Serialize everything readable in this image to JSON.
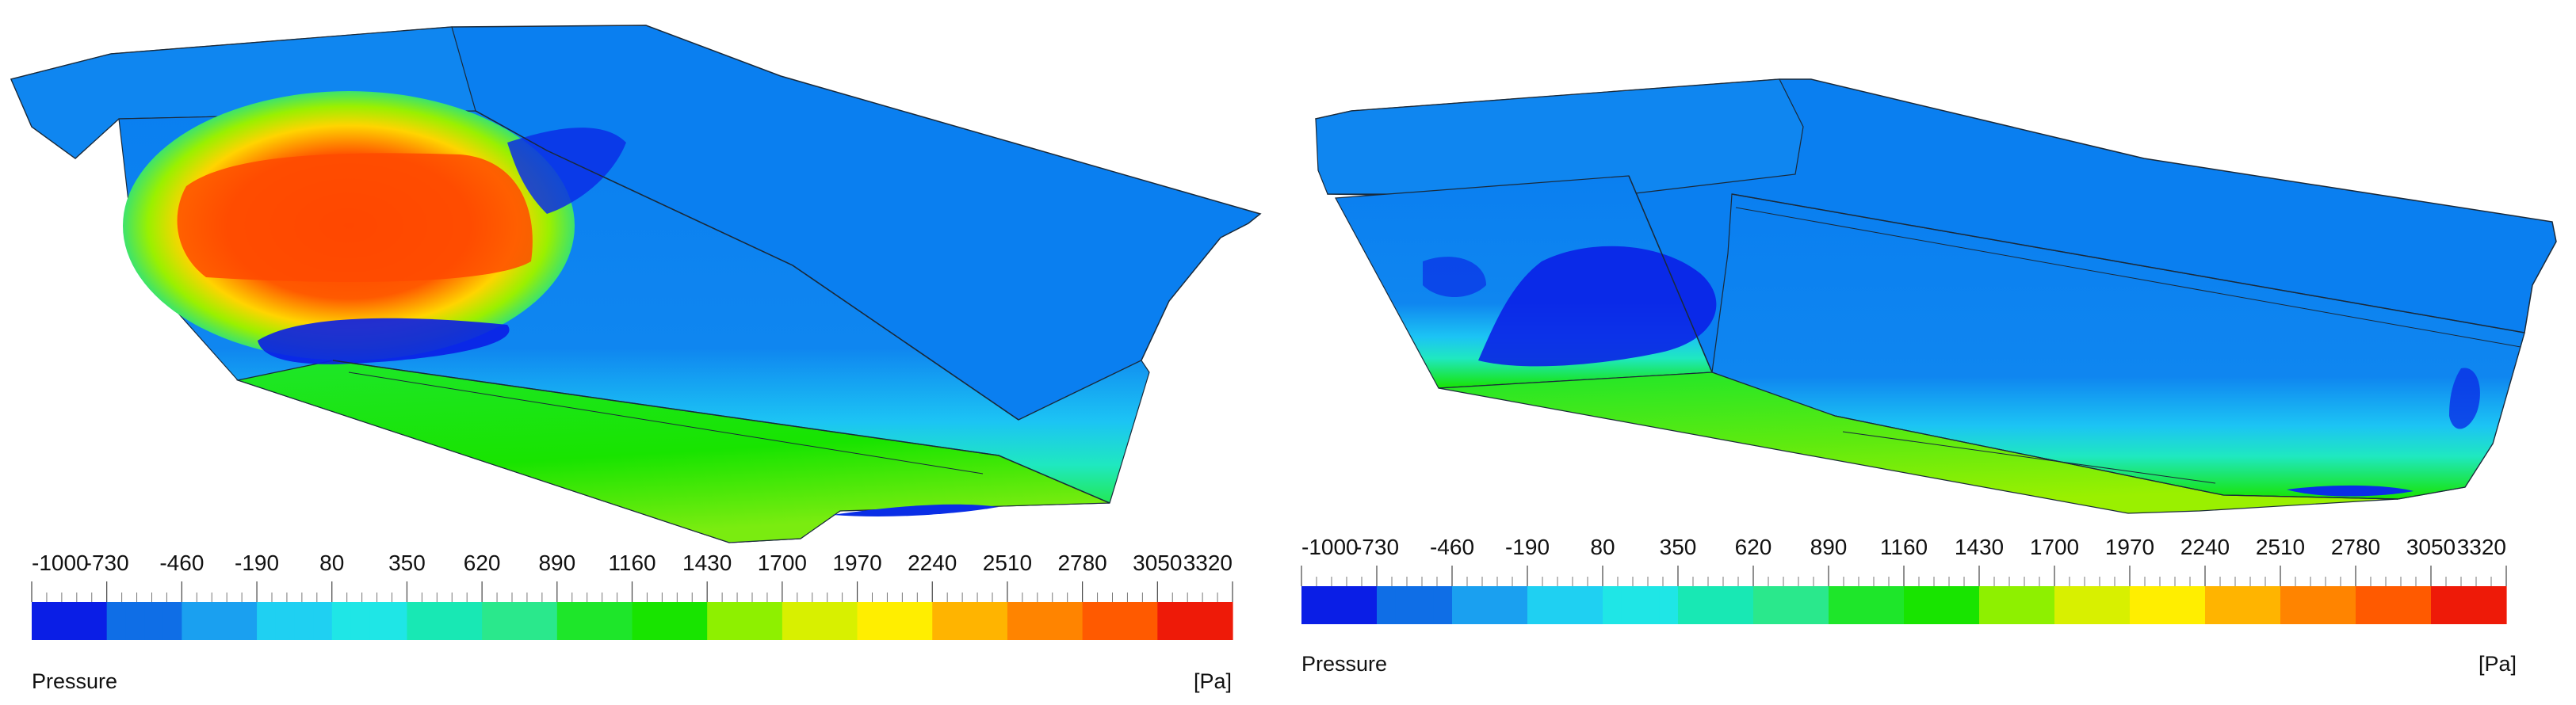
{
  "panels": [
    {
      "id": "left",
      "legend": {
        "ticks": [
          "-1000",
          "-730",
          "-460",
          "-190",
          "80",
          "350",
          "620",
          "890",
          "1160",
          "1430",
          "1700",
          "1970",
          "2240",
          "2510",
          "2780",
          "3050",
          "3320"
        ],
        "quantity": "Pressure",
        "unit": "[Pa]"
      }
    },
    {
      "id": "right",
      "legend": {
        "ticks": [
          "-1000",
          "-730",
          "-460",
          "-190",
          "80",
          "350",
          "620",
          "890",
          "1160",
          "1430",
          "1700",
          "1970",
          "2240",
          "2510",
          "2780",
          "3050",
          "3320"
        ],
        "quantity": "Pressure",
        "unit": "[Pa]"
      }
    }
  ],
  "colorbar_stops": [
    "#0a1ee6",
    "#0f6ee6",
    "#1aa0f0",
    "#1fd0f2",
    "#1fe6e6",
    "#18e8b4",
    "#2ae88c",
    "#1ee62a",
    "#18e400",
    "#8ef000",
    "#d8f000",
    "#ffee00",
    "#ffb400",
    "#ff8400",
    "#ff5a00",
    "#ee1a08"
  ]
}
